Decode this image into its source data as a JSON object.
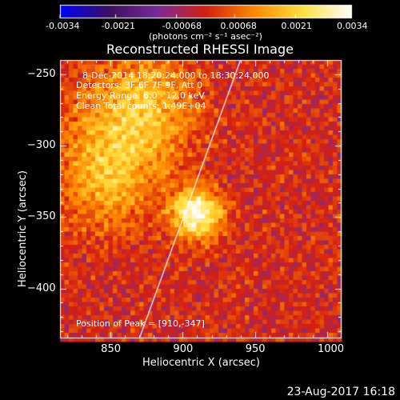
{
  "footer": "23-Aug-2017 16:18",
  "chart_data": {
    "type": "heatmap",
    "title": "Reconstructed RHESSI Image",
    "xlabel": "Heliocentric X (arcsec)",
    "ylabel": "Heliocentric Y (arcsec)",
    "xlim": [
      815,
      1010
    ],
    "ylim": [
      -435,
      -240
    ],
    "xticks": [
      850,
      900,
      950,
      1000
    ],
    "yticks": [
      -250,
      -300,
      -350,
      -400
    ],
    "colormap": [
      "#0000ff",
      "#3a1060",
      "#7a2a9a",
      "#d42010",
      "#ff8a00",
      "#ffe040",
      "#ffffff"
    ],
    "colorbar": {
      "range": [
        -0.0034,
        0.0034
      ],
      "tick_labels": [
        "-0.0034",
        "-0.0021",
        "-0.00068",
        "0.00068",
        "0.0021",
        "0.0034"
      ],
      "unit_label": "(photons cm⁻² s⁻¹ asec⁻²)"
    },
    "annotations": {
      "time_range": "8-Dec-2014 18:20:24.000 to 18:30:24.000",
      "detectors": "Detectors: 3F 6F 7F 9F, Att 0",
      "energy": "Energy Range: 6.0 - 12.0 keV",
      "clean": "Clean     Total counts: 1.49E+04",
      "peak": "Position of Peak = [910,-347]"
    },
    "peak": [
      910,
      -347
    ],
    "limb_line": [
      [
        870,
        -435
      ],
      [
        940,
        -240
      ]
    ],
    "sources": [
      {
        "x": 910,
        "y": -347,
        "sigma": 12,
        "amp": 0.0034
      },
      {
        "x": 860,
        "y": -290,
        "sigma": 28,
        "amp": 0.0018
      },
      {
        "x": 845,
        "y": -330,
        "sigma": 22,
        "amp": 0.0012
      },
      {
        "x": 880,
        "y": -260,
        "sigma": 20,
        "amp": 0.001
      }
    ]
  }
}
